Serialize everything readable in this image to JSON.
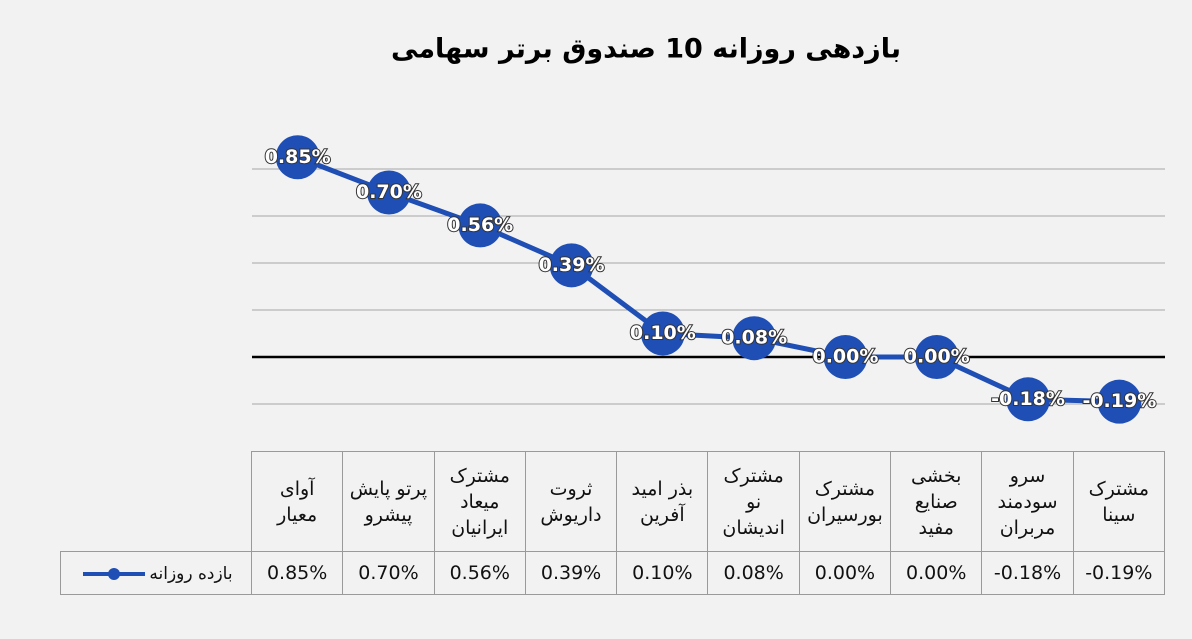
{
  "chart_data": {
    "type": "line",
    "title": "بازدهی روزانه 10 صندوق برتر سهامی",
    "categories": [
      "آوای معیار",
      "پرتو پایش پیشرو",
      "مشترک میعاد ایرانیان",
      "ثروت داریوش",
      "بذر امید آفرین",
      "مشترک نو اندیشان",
      "مشترک بورسیران",
      "بخشی صنایع مفید",
      "سرو سودمند مربران",
      "مشترک سینا"
    ],
    "series": [
      {
        "name": "بازده روزانه",
        "color": "#1f4fb4",
        "values": [
          0.85,
          0.7,
          0.56,
          0.39,
          0.1,
          0.08,
          0.0,
          0.0,
          -0.18,
          -0.19
        ],
        "value_labels": [
          "0.85%",
          "0.70%",
          "0.56%",
          "0.39%",
          "0.10%",
          "0.08%",
          "0.00%",
          "0.00%",
          "-0.18%",
          "-0.19%"
        ]
      }
    ],
    "ylim": [
      -0.2,
      1.0
    ],
    "yticks": [
      -0.2,
      0,
      0.2,
      0.4,
      0.6,
      0.8
    ],
    "grid": true
  }
}
